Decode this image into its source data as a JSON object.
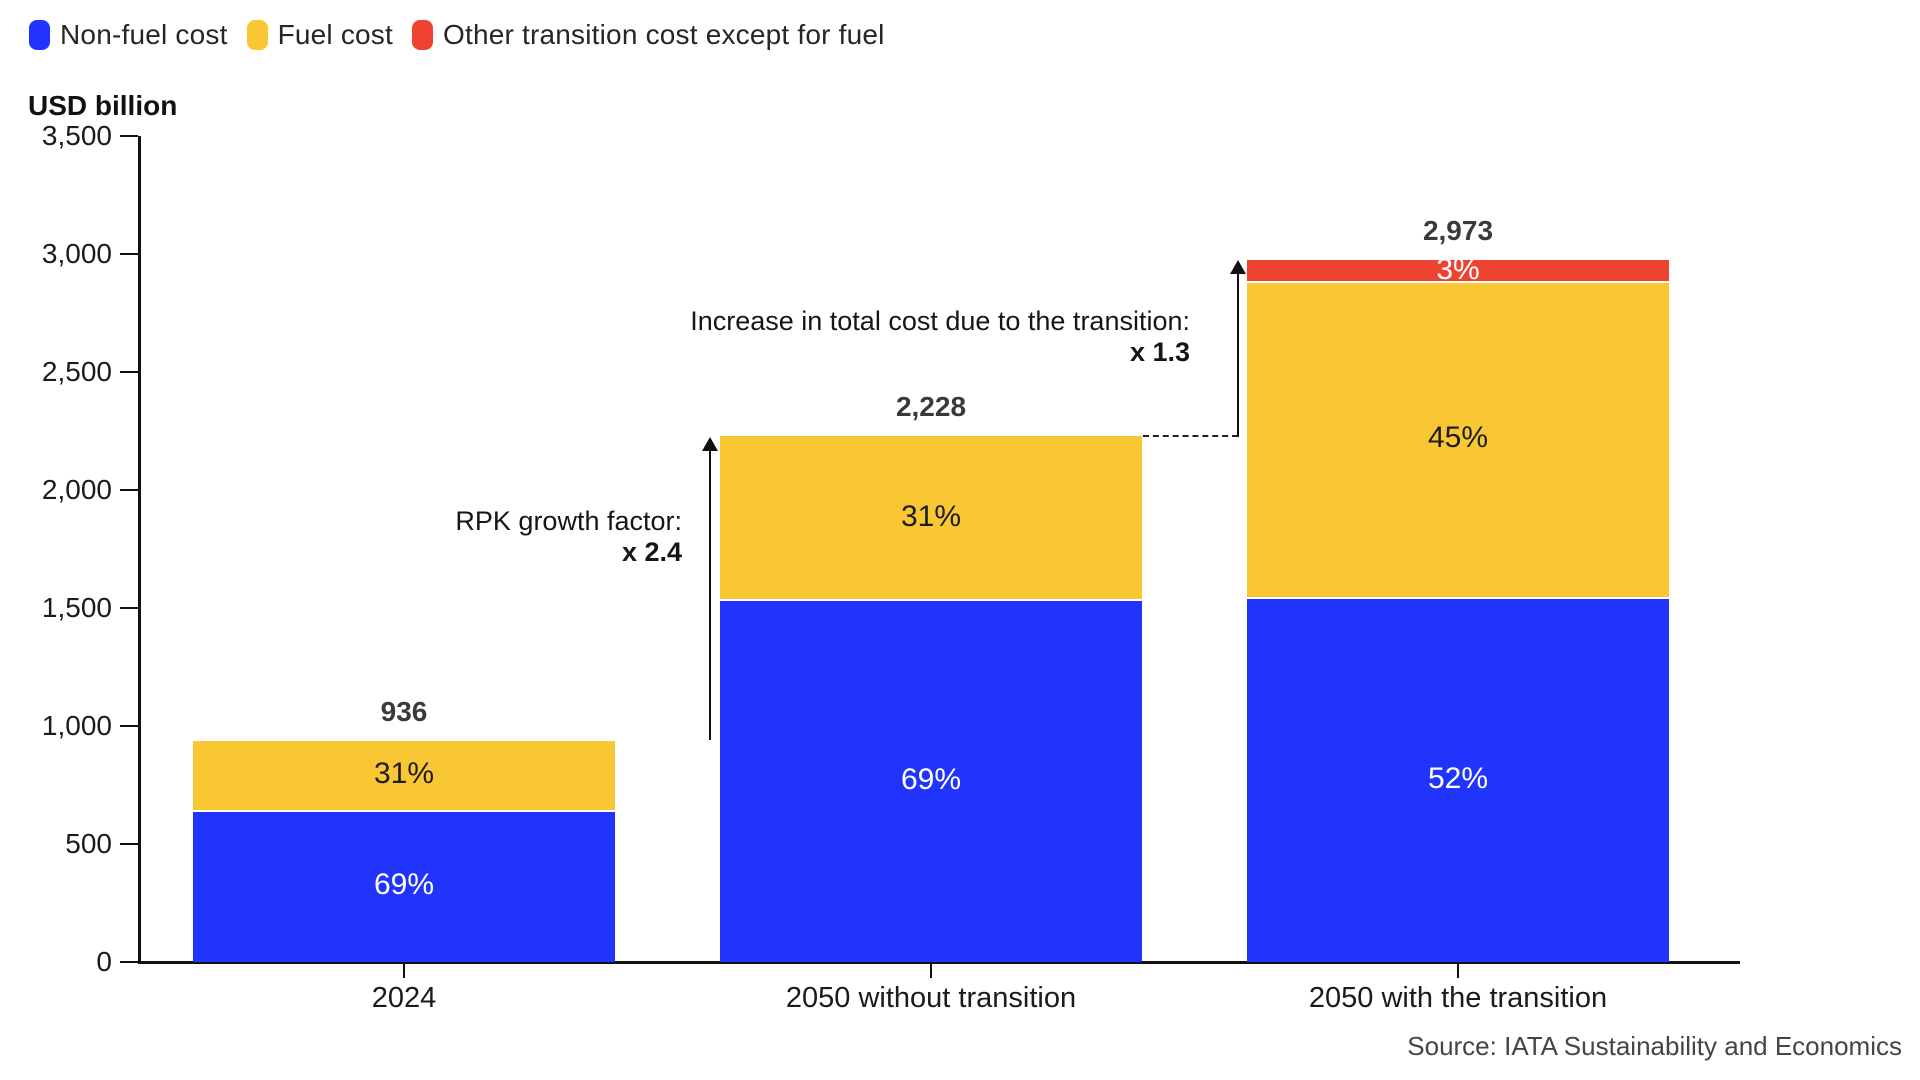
{
  "legend": {
    "items": [
      {
        "label": "Non-fuel cost",
        "color": "#2134FB"
      },
      {
        "label": "Fuel cost",
        "color": "#F8C733"
      },
      {
        "label": "Other transition cost except for fuel",
        "color": "#EE4330"
      }
    ]
  },
  "axis_title": "USD billion",
  "source": "Source: IATA Sustainability and Economics",
  "annotations": {
    "rpk": {
      "line1": "RPK growth factor:",
      "line2": "x 2.4"
    },
    "increase": {
      "line1": "Increase in total cost due to the transition:",
      "line2": "x 1.3"
    }
  },
  "chart_data": {
    "type": "bar",
    "subtype": "stacked",
    "title": "USD billion",
    "ylabel": "USD billion",
    "xlabel": "",
    "ylim": [
      0,
      3500
    ],
    "ytick_step": 500,
    "ytick_values": [
      0,
      500,
      1000,
      1500,
      2000,
      2500,
      3000,
      3500
    ],
    "ytick_labels": [
      "0",
      "500",
      "1,000",
      "1,500",
      "2,000",
      "2,500",
      "3,000",
      "3,500"
    ],
    "grid": false,
    "legend_position": "top-left",
    "categories": [
      "2024",
      "2050 without transition",
      "2050 with the transition"
    ],
    "totals": [
      936,
      2228,
      2973
    ],
    "total_labels": [
      "936",
      "2,228",
      "2,973"
    ],
    "series": [
      {
        "name": "Non-fuel cost",
        "color": "#2134FB",
        "values": [
          646,
          1537,
          1546
        ],
        "percent_labels": [
          "69%",
          "69%",
          "52%"
        ],
        "label_color": "#FFFFFF"
      },
      {
        "name": "Fuel cost",
        "color": "#F8C733",
        "values": [
          290,
          691,
          1338
        ],
        "percent_labels": [
          "31%",
          "31%",
          "45%"
        ],
        "label_color": "#1D1D1D"
      },
      {
        "name": "Other transition cost except for fuel",
        "color": "#EE4330",
        "values": [
          0,
          0,
          89
        ],
        "percent_labels": [
          "",
          "",
          "3%"
        ],
        "label_color": "#FFFFFF"
      }
    ]
  }
}
